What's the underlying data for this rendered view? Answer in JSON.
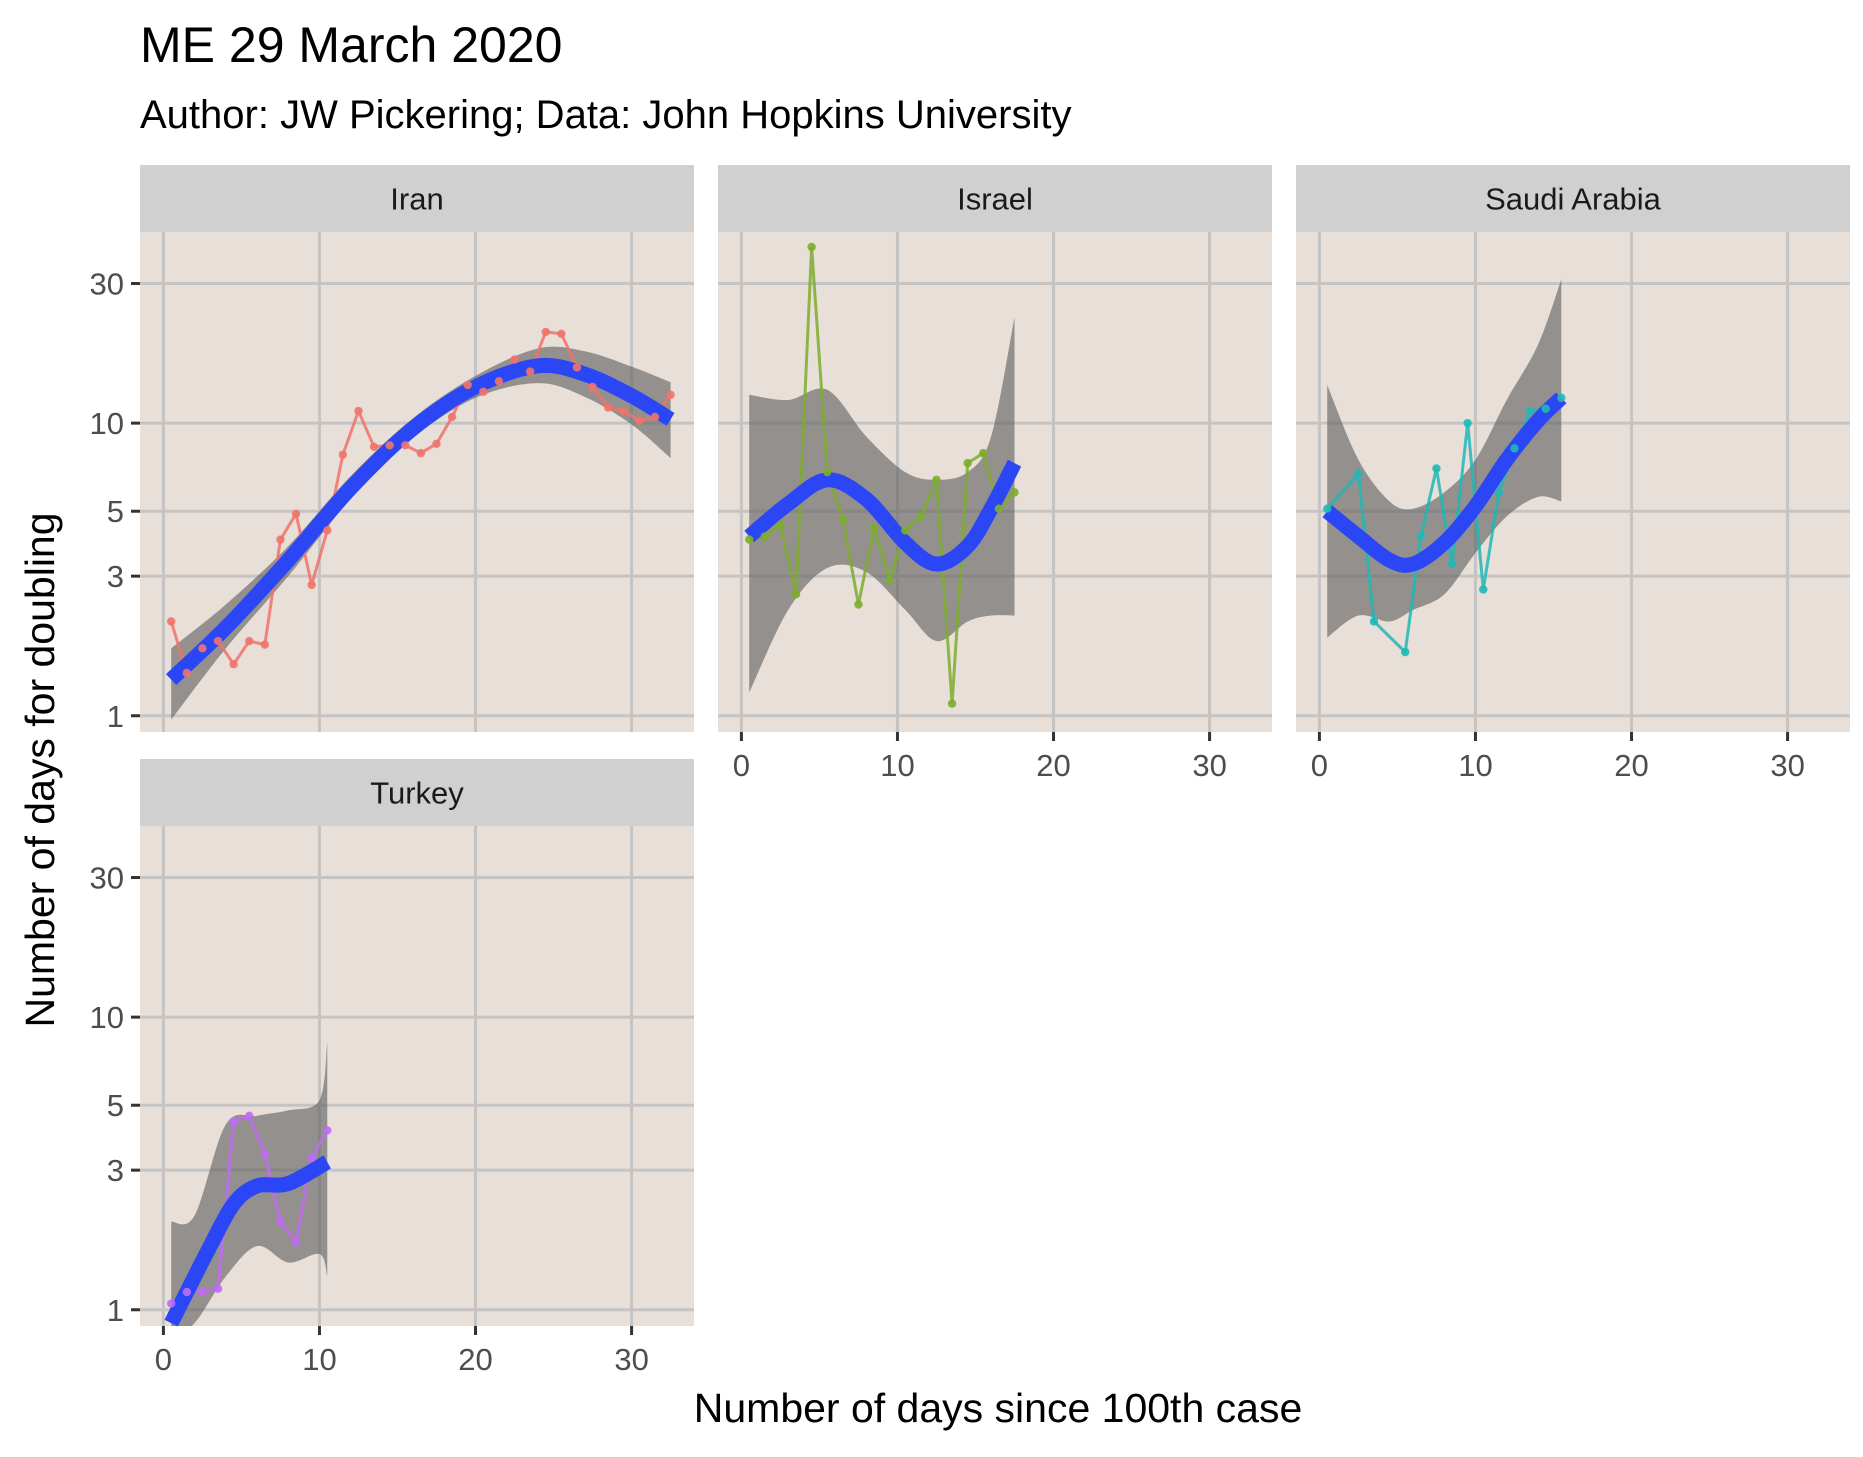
{
  "chart_data": {
    "type": "line",
    "title": "ME 29 March 2020",
    "subtitle": "Author: JW Pickering; Data: John Hopkins University",
    "xlabel": "Number of days since 100th case",
    "ylabel": "Number of days for doubling",
    "xlim": [
      -1.5,
      34
    ],
    "ylim": [
      0.88,
      45
    ],
    "y_scale": "log",
    "x_ticks": [
      0,
      10,
      20,
      30
    ],
    "y_ticks": [
      1,
      3,
      5,
      10,
      30
    ],
    "grid": true,
    "facet_layout": "3 columns x 2 rows",
    "colors": {
      "panel_bg": "#e8dfd8",
      "grid": "#c4c4c4",
      "strip_bg": "#d0d0d0",
      "smooth_line": "#2a46f5",
      "ribbon": "#5f5f5f",
      "Iran": "#f0736b",
      "Israel": "#7cad2e",
      "Saudi Arabia": "#1fb9b7",
      "Turkey": "#c06bf5"
    },
    "panels": [
      {
        "name": "Iran",
        "points": [
          [
            0.5,
            2.1
          ],
          [
            1.5,
            1.4
          ],
          [
            2.5,
            1.7
          ],
          [
            3.5,
            1.8
          ],
          [
            4.5,
            1.5
          ],
          [
            5.5,
            1.8
          ],
          [
            6.5,
            1.75
          ],
          [
            7.5,
            4.0
          ],
          [
            8.5,
            4.9
          ],
          [
            9.5,
            2.8
          ],
          [
            10.5,
            4.3
          ],
          [
            11.5,
            7.8
          ],
          [
            12.5,
            11.0
          ],
          [
            13.5,
            8.3
          ],
          [
            14.5,
            8.4
          ],
          [
            15.5,
            8.4
          ],
          [
            16.5,
            7.9
          ],
          [
            17.5,
            8.5
          ],
          [
            18.5,
            10.5
          ],
          [
            19.5,
            13.5
          ],
          [
            20.5,
            12.8
          ],
          [
            21.5,
            13.9
          ],
          [
            22.5,
            16.5
          ],
          [
            23.5,
            15.0
          ],
          [
            24.5,
            20.5
          ],
          [
            25.5,
            20.2
          ],
          [
            26.5,
            15.5
          ],
          [
            27.5,
            13.3
          ],
          [
            28.5,
            11.3
          ],
          [
            29.5,
            11.0
          ],
          [
            30.5,
            10.2
          ],
          [
            31.5,
            10.5
          ],
          [
            32.5,
            12.5
          ]
        ],
        "smooth": [
          [
            0.5,
            1.33
          ],
          [
            4,
            2.0
          ],
          [
            8,
            3.4
          ],
          [
            12,
            6.0
          ],
          [
            16,
            9.6
          ],
          [
            20,
            13.3
          ],
          [
            24,
            15.7
          ],
          [
            27,
            14.7
          ],
          [
            30,
            12.4
          ],
          [
            32.5,
            10.3
          ]
        ],
        "ribbon_upper": [
          [
            0.5,
            1.7
          ],
          [
            4,
            2.4
          ],
          [
            8,
            3.8
          ],
          [
            12,
            6.6
          ],
          [
            16,
            10.4
          ],
          [
            20,
            14.5
          ],
          [
            24,
            18.0
          ],
          [
            27,
            17.6
          ],
          [
            30,
            15.6
          ],
          [
            32.5,
            13.8
          ]
        ],
        "ribbon_lower": [
          [
            0.5,
            0.97
          ],
          [
            4,
            1.7
          ],
          [
            8,
            3.0
          ],
          [
            12,
            5.5
          ],
          [
            16,
            8.9
          ],
          [
            20,
            12.2
          ],
          [
            24,
            13.7
          ],
          [
            27,
            12.3
          ],
          [
            30,
            9.9
          ],
          [
            32.5,
            7.6
          ]
        ]
      },
      {
        "name": "Israel",
        "points": [
          [
            0.5,
            4.0
          ],
          [
            1.5,
            4.1
          ],
          [
            2.5,
            4.5
          ],
          [
            3.5,
            2.6
          ],
          [
            4.5,
            40.0
          ],
          [
            5.5,
            6.8
          ],
          [
            6.5,
            4.7
          ],
          [
            7.5,
            2.4
          ],
          [
            8.5,
            4.4
          ],
          [
            9.5,
            2.9
          ],
          [
            10.5,
            4.3
          ],
          [
            11.5,
            4.8
          ],
          [
            12.5,
            6.4
          ],
          [
            13.5,
            1.1
          ],
          [
            14.5,
            7.3
          ],
          [
            15.5,
            7.9
          ],
          [
            16.5,
            5.1
          ],
          [
            17.5,
            5.8
          ]
        ],
        "smooth": [
          [
            0.5,
            4.1
          ],
          [
            3,
            5.3
          ],
          [
            5.5,
            6.4
          ],
          [
            8,
            5.5
          ],
          [
            10.5,
            3.9
          ],
          [
            12.5,
            3.3
          ],
          [
            14.5,
            3.8
          ],
          [
            16,
            5.1
          ],
          [
            17.5,
            7.3
          ]
        ],
        "ribbon_upper": [
          [
            0.5,
            12.5
          ],
          [
            3,
            12.0
          ],
          [
            5.5,
            13.0
          ],
          [
            8,
            9.0
          ],
          [
            10.5,
            6.8
          ],
          [
            12.5,
            6.4
          ],
          [
            14.5,
            6.8
          ],
          [
            16,
            9.0
          ],
          [
            17.5,
            23.0
          ]
        ],
        "ribbon_lower": [
          [
            0.5,
            1.2
          ],
          [
            3,
            2.3
          ],
          [
            5.5,
            3.2
          ],
          [
            8,
            3.1
          ],
          [
            10.5,
            2.3
          ],
          [
            12.5,
            1.8
          ],
          [
            14.5,
            2.1
          ],
          [
            16,
            2.2
          ],
          [
            17.5,
            2.2
          ]
        ]
      },
      {
        "name": "Saudi Arabia",
        "points": [
          [
            0.5,
            5.1
          ],
          [
            2.5,
            6.7
          ],
          [
            3.5,
            2.1
          ],
          [
            5.5,
            1.65
          ],
          [
            6.5,
            4.1
          ],
          [
            7.5,
            7.0
          ],
          [
            8.5,
            3.3
          ],
          [
            9.5,
            10.0
          ],
          [
            10.5,
            2.7
          ],
          [
            11.5,
            5.8
          ],
          [
            12.5,
            8.2
          ],
          [
            13.5,
            11.0
          ],
          [
            14.5,
            11.2
          ],
          [
            15.5,
            12.2
          ]
        ],
        "smooth": [
          [
            0.5,
            5.0
          ],
          [
            2.5,
            4.1
          ],
          [
            4.5,
            3.4
          ],
          [
            6,
            3.3
          ],
          [
            8,
            3.9
          ],
          [
            10,
            5.2
          ],
          [
            12,
            7.5
          ],
          [
            14,
            10.2
          ],
          [
            15.5,
            12.2
          ]
        ],
        "ribbon_upper": [
          [
            0.5,
            13.5
          ],
          [
            2.5,
            7.5
          ],
          [
            4.5,
            5.4
          ],
          [
            6,
            5.1
          ],
          [
            8,
            5.8
          ],
          [
            10,
            7.5
          ],
          [
            12,
            12.0
          ],
          [
            14,
            18.5
          ],
          [
            15.5,
            31.0
          ]
        ],
        "ribbon_lower": [
          [
            0.5,
            1.85
          ],
          [
            2.5,
            2.2
          ],
          [
            4.5,
            2.1
          ],
          [
            6,
            2.3
          ],
          [
            8,
            2.6
          ],
          [
            10,
            3.6
          ],
          [
            12,
            4.8
          ],
          [
            14,
            5.6
          ],
          [
            15.5,
            5.4
          ]
        ]
      },
      {
        "name": "Turkey",
        "points": [
          [
            0.5,
            1.05
          ],
          [
            1.5,
            1.15
          ],
          [
            2.5,
            1.15
          ],
          [
            3.5,
            1.18
          ],
          [
            4.5,
            4.4
          ],
          [
            5.5,
            4.6
          ],
          [
            6.5,
            3.4
          ],
          [
            7.5,
            2.0
          ],
          [
            8.5,
            1.7
          ],
          [
            9.5,
            3.3
          ],
          [
            10.5,
            4.1
          ]
        ],
        "smooth": [
          [
            0.5,
            0.9
          ],
          [
            1.5,
            1.15
          ],
          [
            3,
            1.65
          ],
          [
            4.5,
            2.3
          ],
          [
            6,
            2.65
          ],
          [
            8,
            2.7
          ],
          [
            10.5,
            3.2
          ]
        ],
        "ribbon_upper": [
          [
            0.5,
            2.0
          ],
          [
            2,
            2.1
          ],
          [
            4,
            4.3
          ],
          [
            6,
            4.6
          ],
          [
            8,
            4.8
          ],
          [
            10,
            5.2
          ],
          [
            10.5,
            8.2
          ]
        ],
        "ribbon_lower": [
          [
            0.5,
            0.8
          ],
          [
            2,
            0.9
          ],
          [
            4,
            1.3
          ],
          [
            6,
            1.65
          ],
          [
            8,
            1.45
          ],
          [
            10,
            1.55
          ],
          [
            10.5,
            1.3
          ]
        ]
      }
    ]
  }
}
